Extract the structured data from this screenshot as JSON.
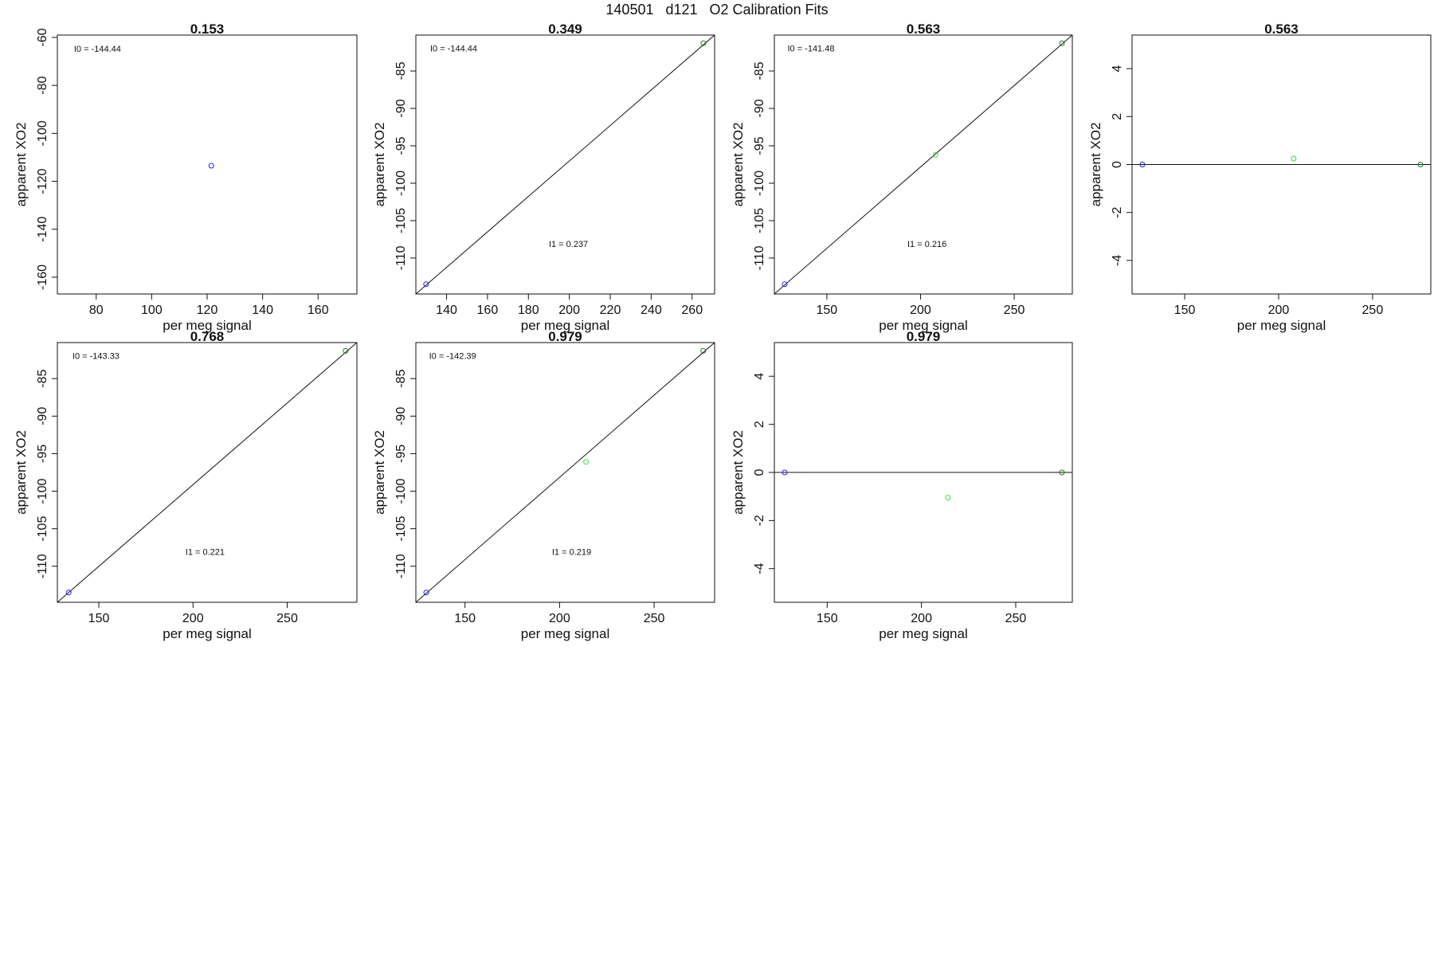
{
  "page_title": "140501   d121   O2 Calibration Fits",
  "colors": {
    "blue": "#2222ee",
    "green": "#33dd33",
    "dark_green": "#227722",
    "axis": "#111111"
  },
  "chart_data": [
    {
      "type": "scatter",
      "title": "0.153",
      "xlabel": "per meg signal",
      "ylabel": "apparent XO2",
      "xlim": [
        66,
        174
      ],
      "ylim": [
        -167,
        -59
      ],
      "xticks": [
        80,
        100,
        120,
        140,
        160
      ],
      "yticks": [
        -160,
        -140,
        -120,
        -100,
        -80,
        -60
      ],
      "points": [
        {
          "x": 121.5,
          "y": -113.5,
          "color": "blue"
        }
      ],
      "fit_line": null,
      "annotations": [
        {
          "text": "I0 =  -144.44",
          "x": 72,
          "y": -66
        }
      ]
    },
    {
      "type": "scatter",
      "title": "0.349",
      "xlabel": "per meg signal",
      "ylabel": "apparent XO2",
      "xlim": [
        125,
        271
      ],
      "ylim": [
        -114.8,
        -80.2
      ],
      "xticks": [
        140,
        160,
        180,
        200,
        220,
        240,
        260
      ],
      "yticks": [
        -110,
        -105,
        -100,
        -95,
        -90,
        -85
      ],
      "points": [
        {
          "x": 130,
          "y": -113.5,
          "color": "blue"
        },
        {
          "x": 265.5,
          "y": -81.3,
          "color": "dark_green"
        }
      ],
      "fit_line": {
        "x1": 125,
        "y1": -114.8,
        "x2": 271,
        "y2": -80.2
      },
      "annotations": [
        {
          "text": "I0 =  -144.44",
          "x": 132,
          "y": -82.4
        },
        {
          "text": "I1 =  0.237",
          "x": 190,
          "y": -108.5
        }
      ]
    },
    {
      "type": "scatter",
      "title": "0.563",
      "xlabel": "per meg signal",
      "ylabel": "apparent XO2",
      "xlim": [
        122,
        281
      ],
      "ylim": [
        -114.8,
        -80.2
      ],
      "xticks": [
        150,
        200,
        250
      ],
      "yticks": [
        -110,
        -105,
        -100,
        -95,
        -90,
        -85
      ],
      "points": [
        {
          "x": 127.5,
          "y": -113.5,
          "color": "blue"
        },
        {
          "x": 208,
          "y": -96.2,
          "color": "green"
        },
        {
          "x": 275.5,
          "y": -81.3,
          "color": "dark_green"
        }
      ],
      "fit_line": {
        "x1": 122,
        "y1": -114.8,
        "x2": 281,
        "y2": -80.2
      },
      "annotations": [
        {
          "text": "I0 =  -141.48",
          "x": 129,
          "y": -82.4
        },
        {
          "text": "I1 =  0.216",
          "x": 193,
          "y": -108.5
        }
      ]
    },
    {
      "type": "scatter",
      "title": "0.563",
      "xlabel": "per meg signal",
      "ylabel": "apparent XO2",
      "xlim": [
        122,
        281
      ],
      "ylim": [
        -5.4,
        5.4
      ],
      "xticks": [
        150,
        200,
        250
      ],
      "yticks": [
        -4,
        -2,
        0,
        2,
        4
      ],
      "points": [
        {
          "x": 127.5,
          "y": 0,
          "color": "blue"
        },
        {
          "x": 208,
          "y": 0.25,
          "color": "green"
        },
        {
          "x": 275.5,
          "y": 0,
          "color": "dark_green"
        }
      ],
      "hline": 0,
      "annotations": []
    },
    {
      "type": "scatter",
      "title": "0.768",
      "xlabel": "per meg signal",
      "ylabel": "apparent XO2",
      "xlim": [
        128,
        287
      ],
      "ylim": [
        -114.8,
        -80.2
      ],
      "xticks": [
        150,
        200,
        250
      ],
      "yticks": [
        -110,
        -105,
        -100,
        -95,
        -90,
        -85
      ],
      "points": [
        {
          "x": 134,
          "y": -113.5,
          "color": "blue"
        },
        {
          "x": 281,
          "y": -81.3,
          "color": "dark_green"
        }
      ],
      "fit_line": {
        "x1": 128,
        "y1": -114.8,
        "x2": 287,
        "y2": -80.2
      },
      "annotations": [
        {
          "text": "I0 =  -143.33",
          "x": 136,
          "y": -82.4
        },
        {
          "text": "I1 =  0.221",
          "x": 196,
          "y": -108.5
        }
      ]
    },
    {
      "type": "scatter",
      "title": "0.979",
      "xlabel": "per meg signal",
      "ylabel": "apparent XO2",
      "xlim": [
        124,
        282
      ],
      "ylim": [
        -114.8,
        -80.2
      ],
      "xticks": [
        150,
        200,
        250
      ],
      "yticks": [
        -110,
        -105,
        -100,
        -95,
        -90,
        -85
      ],
      "points": [
        {
          "x": 129.5,
          "y": -113.5,
          "color": "blue"
        },
        {
          "x": 214,
          "y": -96.1,
          "color": "green"
        },
        {
          "x": 276,
          "y": -81.3,
          "color": "dark_green"
        }
      ],
      "fit_line": {
        "x1": 124,
        "y1": -114.8,
        "x2": 282,
        "y2": -80.2
      },
      "annotations": [
        {
          "text": "I0 =  -142.39",
          "x": 131,
          "y": -82.4
        },
        {
          "text": "I1 =  0.219",
          "x": 196,
          "y": -108.5
        }
      ]
    },
    {
      "type": "scatter",
      "title": "0.979",
      "xlabel": "per meg signal",
      "ylabel": "apparent XO2",
      "xlim": [
        122,
        280
      ],
      "ylim": [
        -5.4,
        5.4
      ],
      "xticks": [
        150,
        200,
        250
      ],
      "yticks": [
        -4,
        -2,
        0,
        2,
        4
      ],
      "points": [
        {
          "x": 127.5,
          "y": 0,
          "color": "blue"
        },
        {
          "x": 214,
          "y": -1.05,
          "color": "green"
        },
        {
          "x": 274.5,
          "y": 0,
          "color": "dark_green"
        }
      ],
      "hline": 0,
      "annotations": []
    }
  ]
}
